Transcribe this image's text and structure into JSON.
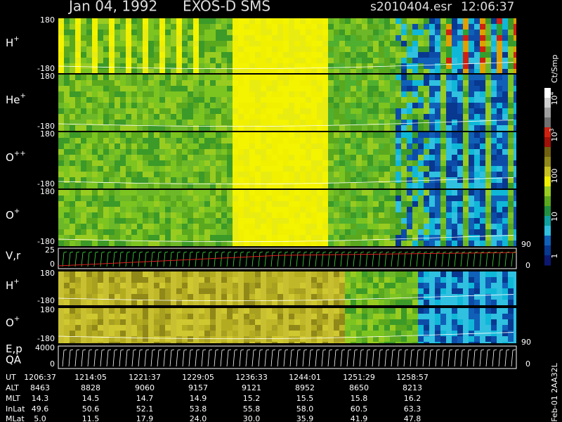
{
  "header": {
    "date": "Jan 04, 1992",
    "instrument": "EXOS-D SMS",
    "file": "s2010404.esr",
    "time": "12:06:37"
  },
  "panels": [
    {
      "label": "H",
      "sup": "+",
      "top": "180",
      "bottom": "-180"
    },
    {
      "label": "He",
      "sup": "+",
      "top": "180",
      "bottom": "-180"
    },
    {
      "label": "O",
      "sup": "++",
      "top": "180",
      "bottom": "-180"
    },
    {
      "label": "O",
      "sup": "+",
      "top": "180",
      "bottom": "-180"
    },
    {
      "label": "V,r",
      "top": "25",
      "bottom": "0"
    },
    {
      "label": "H",
      "sup": "+",
      "top": "180",
      "bottom": "-180"
    },
    {
      "label": "O",
      "sup": "+",
      "top": "180",
      "bottom": "-180"
    },
    {
      "label": "E,p",
      "label2": "QA",
      "top": "4000",
      "bottom": "0"
    }
  ],
  "right_axis": [
    "90",
    "0",
    "90",
    "0"
  ],
  "colorbar": {
    "unit": "Ct/Smp",
    "labels": [
      {
        "base": "10",
        "exp": "4"
      },
      {
        "base": "10",
        "exp": "3"
      },
      "100",
      "10",
      "1"
    ]
  },
  "table": {
    "row_labels": [
      "UT",
      "ALT",
      "MLT",
      "InLat",
      "MLat"
    ],
    "rows": [
      [
        "1206:37",
        "1214:05",
        "1221:37",
        "1229:05",
        "1236:33",
        "1244:01",
        "1251:29",
        "1258:57"
      ],
      [
        "8463",
        "8828",
        "9060",
        "9157",
        "9121",
        "8952",
        "8650",
        "8213"
      ],
      [
        "14.3",
        "14.5",
        "14.7",
        "14.9",
        "15.2",
        "15.5",
        "15.8",
        "16.2"
      ],
      [
        "49.6",
        "50.6",
        "52.1",
        "53.8",
        "55.8",
        "58.0",
        "60.5",
        "63.3"
      ],
      [
        "5.0",
        "11.5",
        "17.9",
        "24.0",
        "30.0",
        "35.9",
        "41.9",
        "47.8"
      ]
    ]
  },
  "footer": "Feb-01 2AA32L"
}
